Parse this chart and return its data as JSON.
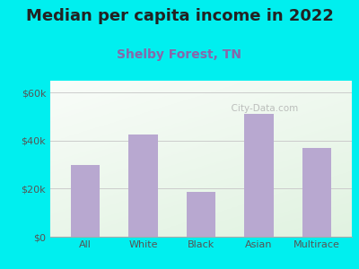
{
  "title": "Median per capita income in 2022",
  "subtitle": "Shelby Forest, TN",
  "categories": [
    "All",
    "White",
    "Black",
    "Asian",
    "Multirace"
  ],
  "values": [
    30000,
    42500,
    18500,
    51000,
    37000
  ],
  "bar_color": "#b8a8d0",
  "background_color": "#00EFEF",
  "title_fontsize": 13,
  "subtitle_fontsize": 10,
  "subtitle_color": "#8866aa",
  "title_color": "#222222",
  "tick_color": "#555555",
  "ylim": [
    0,
    65000
  ],
  "yticks": [
    0,
    20000,
    40000,
    60000
  ],
  "ytick_labels": [
    "$0",
    "$20k",
    "$40k",
    "$60k"
  ],
  "watermark": "  City-Data.com"
}
